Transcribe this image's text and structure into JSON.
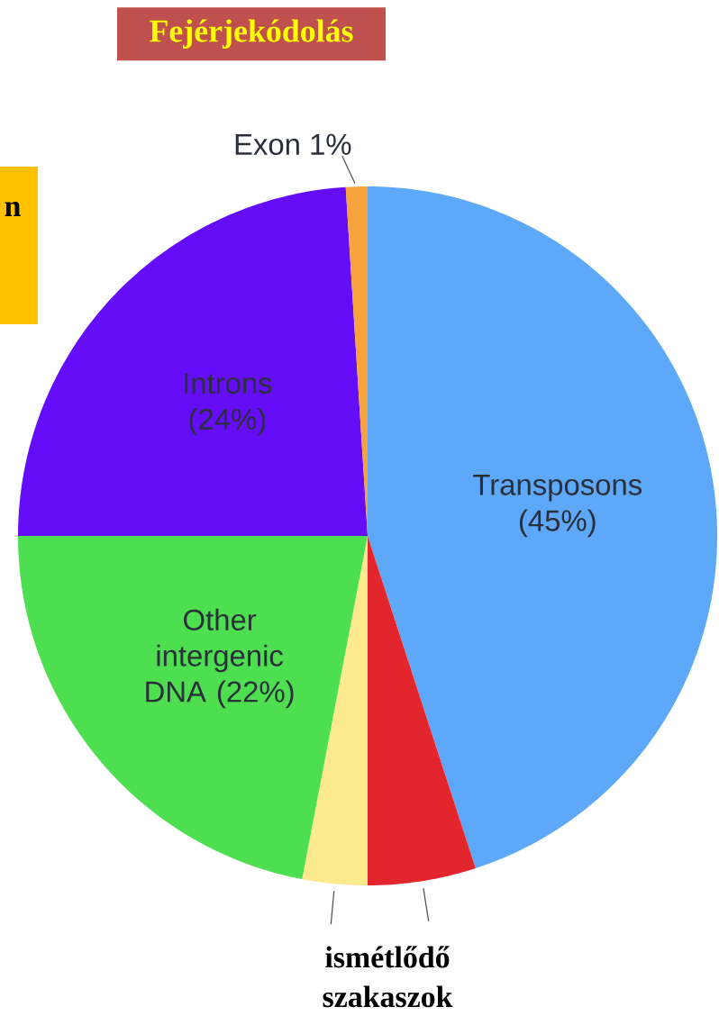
{
  "chart_data": {
    "type": "pie",
    "categories": [
      "Transposons (45%)",
      null,
      null,
      "Other intergenic DNA (22%)",
      "Introns (24%)",
      "Exon 1%"
    ],
    "values": [
      45,
      5,
      3,
      22,
      24,
      1
    ],
    "colors": [
      "#5ea8fa",
      "#e3262e",
      "#fde98e",
      "#4ddf50",
      "#650df9",
      "#f7a23c"
    ],
    "annotations": [
      "Fejérjekódolás",
      "n",
      "ismétlődő szakaszok"
    ]
  }
}
